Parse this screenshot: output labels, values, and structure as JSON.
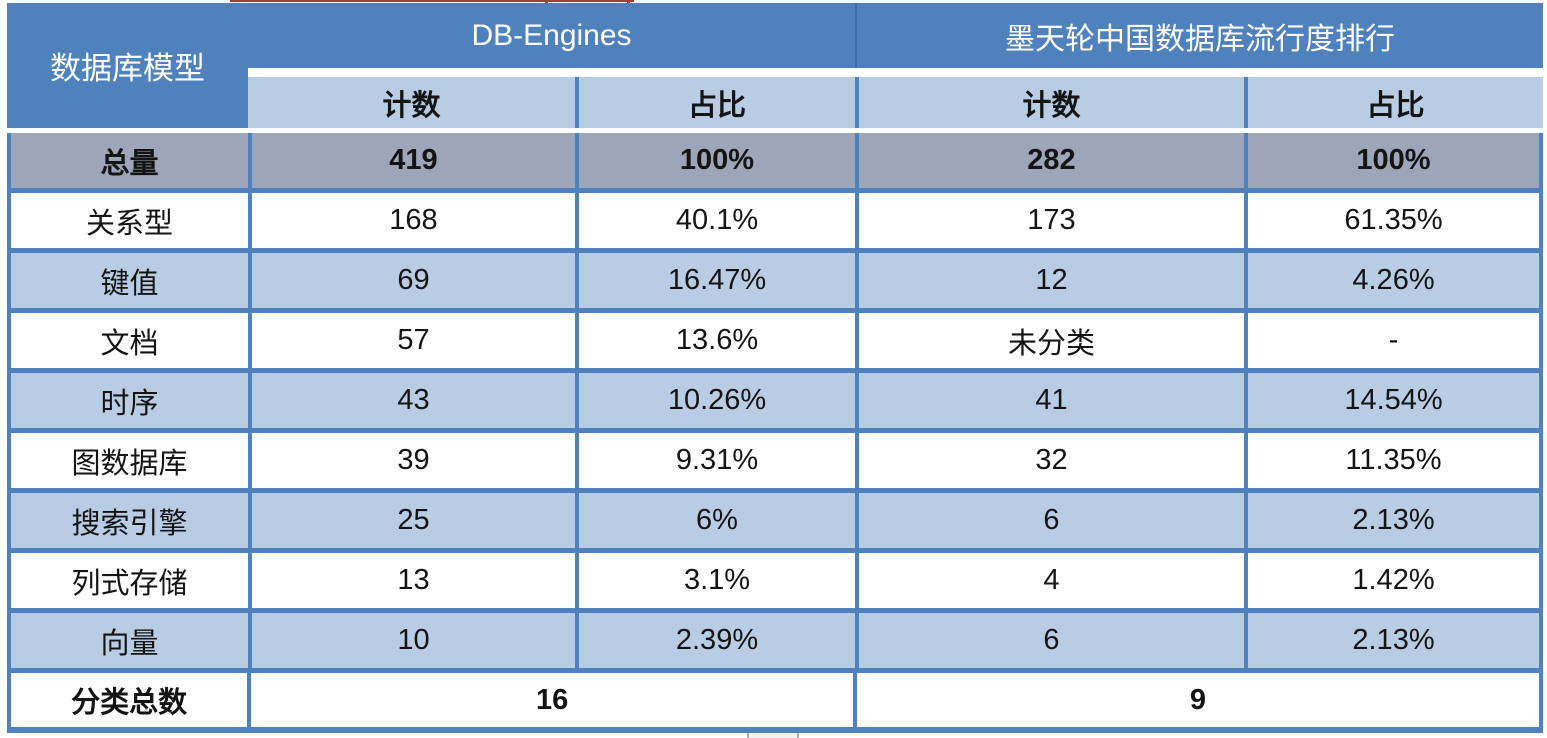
{
  "colors": {
    "header_blue": "#4f81bd",
    "subheader_light_blue": "#b8cce4",
    "total_row_gray": "#9ca6b8",
    "border_blue": "#4f81bd",
    "header_text": "#ffffff",
    "body_text": "#141414",
    "artifact_red": "#b03a2e"
  },
  "table": {
    "corner_header": "数据库模型",
    "group_headers": [
      {
        "label": "DB-Engines"
      },
      {
        "label": "墨天轮中国数据库流行度排行"
      }
    ],
    "sub_headers": [
      "计数",
      "占比",
      "计数",
      "占比"
    ],
    "total_row": {
      "label": "总量",
      "cells": [
        "419",
        "100%",
        "282",
        "100%"
      ]
    },
    "rows": [
      {
        "label": "关系型",
        "cells": [
          "168",
          "40.1%",
          "173",
          "61.35%"
        ]
      },
      {
        "label": "键值",
        "cells": [
          "69",
          "16.47%",
          "12",
          "4.26%"
        ]
      },
      {
        "label": "文档",
        "cells": [
          "57",
          "13.6%",
          "未分类",
          "-"
        ]
      },
      {
        "label": "时序",
        "cells": [
          "43",
          "10.26%",
          "41",
          "14.54%"
        ]
      },
      {
        "label": "图数据库",
        "cells": [
          "39",
          "9.31%",
          "32",
          "11.35%"
        ]
      },
      {
        "label": "搜索引擎",
        "cells": [
          "25",
          "6%",
          "6",
          "2.13%"
        ]
      },
      {
        "label": "列式存储",
        "cells": [
          "13",
          "3.1%",
          "4",
          "1.42%"
        ]
      },
      {
        "label": "向量",
        "cells": [
          "10",
          "2.39%",
          "6",
          "2.13%"
        ]
      }
    ],
    "footer_row": {
      "label": "分类总数",
      "db_engines_total": "16",
      "modb_total": "9"
    }
  },
  "chart_data": {
    "type": "table",
    "columns": [
      "数据库模型",
      "DB-Engines 计数",
      "DB-Engines 占比",
      "墨天轮中国数据库流行度排行 计数",
      "墨天轮中国数据库流行度排行 占比"
    ],
    "rows": [
      [
        "总量",
        "419",
        "100%",
        "282",
        "100%"
      ],
      [
        "关系型",
        "168",
        "40.1%",
        "173",
        "61.35%"
      ],
      [
        "键值",
        "69",
        "16.47%",
        "12",
        "4.26%"
      ],
      [
        "文档",
        "57",
        "13.6%",
        "未分类",
        "-"
      ],
      [
        "时序",
        "43",
        "10.26%",
        "41",
        "14.54%"
      ],
      [
        "图数据库",
        "39",
        "9.31%",
        "32",
        "11.35%"
      ],
      [
        "搜索引擎",
        "25",
        "6%",
        "6",
        "2.13%"
      ],
      [
        "列式存储",
        "13",
        "3.1%",
        "4",
        "1.42%"
      ],
      [
        "向量",
        "10",
        "2.39%",
        "6",
        "2.13%"
      ],
      [
        "分类总数",
        "16",
        "",
        "9",
        ""
      ]
    ]
  }
}
